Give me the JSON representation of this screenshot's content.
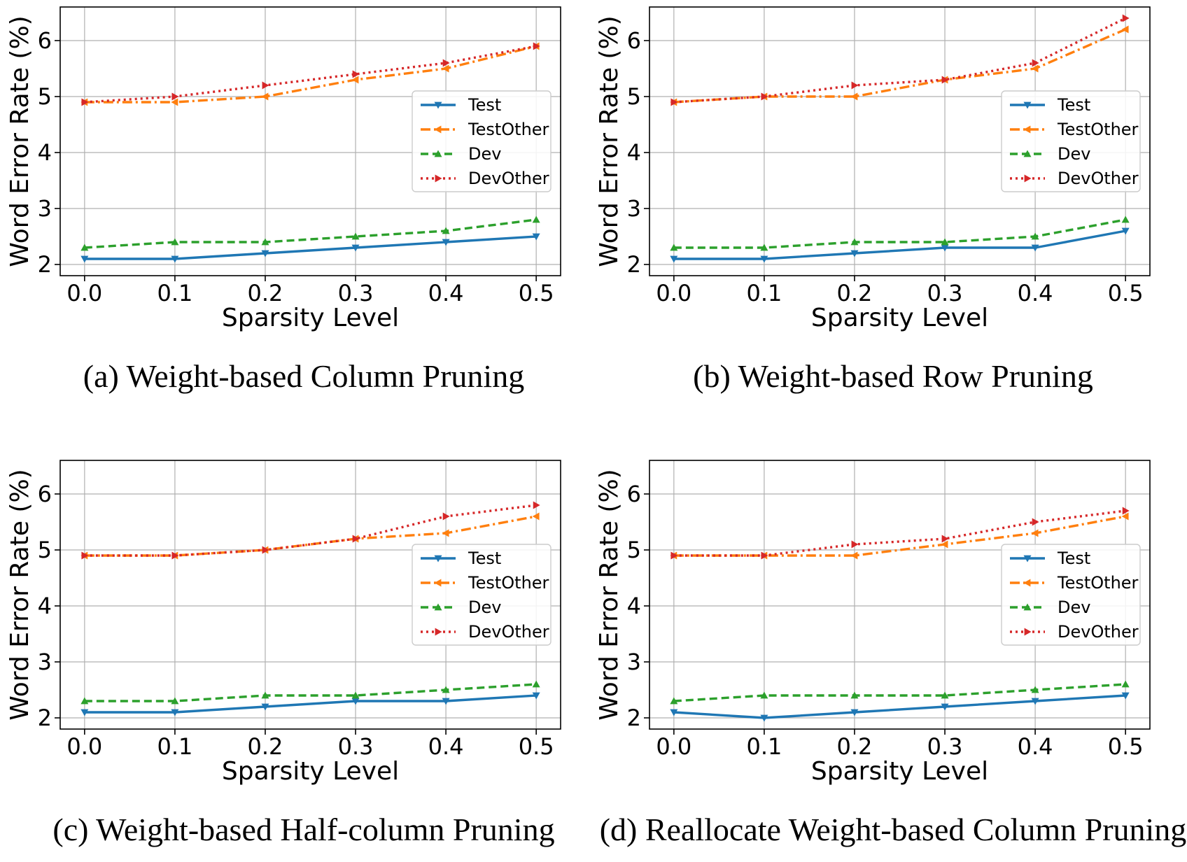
{
  "figure": {
    "colors": {
      "Test": "#1f77b4",
      "TestOther": "#ff7f0e",
      "Dev": "#2ca02c",
      "DevOther": "#d62728",
      "grid": "#b0b0b0",
      "legend_border": "#cccccc"
    }
  },
  "chart_data": [
    {
      "type": "line",
      "caption": "(a) Weight-based Column Pruning",
      "xlabel": "Sparsity Level",
      "ylabel": "Word Error Rate (%)",
      "x": [
        0.0,
        0.1,
        0.2,
        0.3,
        0.4,
        0.5
      ],
      "xticks": [
        "0.0",
        "0.1",
        "0.2",
        "0.3",
        "0.4",
        "0.5"
      ],
      "yticks": [
        "2",
        "3",
        "4",
        "5",
        "6"
      ],
      "xlim": [
        -0.027,
        0.527
      ],
      "ylim": [
        1.8,
        6.6
      ],
      "grid": true,
      "legend_position": "center-right",
      "series": [
        {
          "name": "Test",
          "style": "solid",
          "marker": "triangle-down",
          "values": [
            2.1,
            2.1,
            2.2,
            2.3,
            2.4,
            2.5
          ]
        },
        {
          "name": "TestOther",
          "style": "dashdot",
          "marker": "triangle-left",
          "values": [
            4.9,
            4.9,
            5.0,
            5.3,
            5.5,
            5.9
          ]
        },
        {
          "name": "Dev",
          "style": "dashed",
          "marker": "triangle-up",
          "values": [
            2.3,
            2.4,
            2.4,
            2.5,
            2.6,
            2.8
          ]
        },
        {
          "name": "DevOther",
          "style": "dotted",
          "marker": "triangle-right",
          "values": [
            4.9,
            5.0,
            5.2,
            5.4,
            5.6,
            5.9
          ]
        }
      ]
    },
    {
      "type": "line",
      "caption": "(b) Weight-based Row Pruning",
      "xlabel": "Sparsity Level",
      "ylabel": "Word Error Rate (%)",
      "x": [
        0.0,
        0.1,
        0.2,
        0.3,
        0.4,
        0.5
      ],
      "xticks": [
        "0.0",
        "0.1",
        "0.2",
        "0.3",
        "0.4",
        "0.5"
      ],
      "yticks": [
        "2",
        "3",
        "4",
        "5",
        "6"
      ],
      "xlim": [
        -0.027,
        0.527
      ],
      "ylim": [
        1.8,
        6.6
      ],
      "grid": true,
      "legend_position": "upper-right",
      "series": [
        {
          "name": "Test",
          "style": "solid",
          "marker": "triangle-down",
          "values": [
            2.1,
            2.1,
            2.2,
            2.3,
            2.3,
            2.6
          ]
        },
        {
          "name": "TestOther",
          "style": "dashdot",
          "marker": "triangle-left",
          "values": [
            4.9,
            5.0,
            5.0,
            5.3,
            5.5,
            6.2
          ]
        },
        {
          "name": "Dev",
          "style": "dashed",
          "marker": "triangle-up",
          "values": [
            2.3,
            2.3,
            2.4,
            2.4,
            2.5,
            2.8
          ]
        },
        {
          "name": "DevOther",
          "style": "dotted",
          "marker": "triangle-right",
          "values": [
            4.9,
            5.0,
            5.2,
            5.3,
            5.6,
            6.4
          ]
        }
      ]
    },
    {
      "type": "line",
      "caption": "(c) Weight-based Half-column Pruning",
      "xlabel": "Sparsity Level",
      "ylabel": "Word Error Rate (%)",
      "x": [
        0.0,
        0.1,
        0.2,
        0.3,
        0.4,
        0.5
      ],
      "xticks": [
        "0.0",
        "0.1",
        "0.2",
        "0.3",
        "0.4",
        "0.5"
      ],
      "yticks": [
        "2",
        "3",
        "4",
        "5",
        "6"
      ],
      "xlim": [
        -0.027,
        0.527
      ],
      "ylim": [
        1.8,
        6.6
      ],
      "grid": true,
      "legend_position": "center-right",
      "series": [
        {
          "name": "Test",
          "style": "solid",
          "marker": "triangle-down",
          "values": [
            2.1,
            2.1,
            2.2,
            2.3,
            2.3,
            2.4
          ]
        },
        {
          "name": "TestOther",
          "style": "dashdot",
          "marker": "triangle-left",
          "values": [
            4.9,
            4.9,
            5.0,
            5.2,
            5.3,
            5.6
          ]
        },
        {
          "name": "Dev",
          "style": "dashed",
          "marker": "triangle-up",
          "values": [
            2.3,
            2.3,
            2.4,
            2.4,
            2.5,
            2.6
          ]
        },
        {
          "name": "DevOther",
          "style": "dotted",
          "marker": "triangle-right",
          "values": [
            4.9,
            4.9,
            5.0,
            5.2,
            5.6,
            5.8
          ]
        }
      ]
    },
    {
      "type": "line",
      "caption": "(d) Reallocate Weight-based Column Pruning",
      "xlabel": "Sparsity Level",
      "ylabel": "Word Error Rate (%)",
      "x": [
        0.0,
        0.1,
        0.2,
        0.3,
        0.4,
        0.5
      ],
      "xticks": [
        "0.0",
        "0.1",
        "0.2",
        "0.3",
        "0.4",
        "0.5"
      ],
      "yticks": [
        "2",
        "3",
        "4",
        "5",
        "6"
      ],
      "xlim": [
        -0.027,
        0.527
      ],
      "ylim": [
        1.8,
        6.6
      ],
      "grid": true,
      "legend_position": "center-right",
      "series": [
        {
          "name": "Test",
          "style": "solid",
          "marker": "triangle-down",
          "values": [
            2.1,
            2.0,
            2.1,
            2.2,
            2.3,
            2.4
          ]
        },
        {
          "name": "TestOther",
          "style": "dashdot",
          "marker": "triangle-left",
          "values": [
            4.9,
            4.9,
            4.9,
            5.1,
            5.3,
            5.6
          ]
        },
        {
          "name": "Dev",
          "style": "dashed",
          "marker": "triangle-up",
          "values": [
            2.3,
            2.4,
            2.4,
            2.4,
            2.5,
            2.6
          ]
        },
        {
          "name": "DevOther",
          "style": "dotted",
          "marker": "triangle-right",
          "values": [
            4.9,
            4.9,
            5.1,
            5.2,
            5.5,
            5.7
          ]
        }
      ]
    }
  ]
}
